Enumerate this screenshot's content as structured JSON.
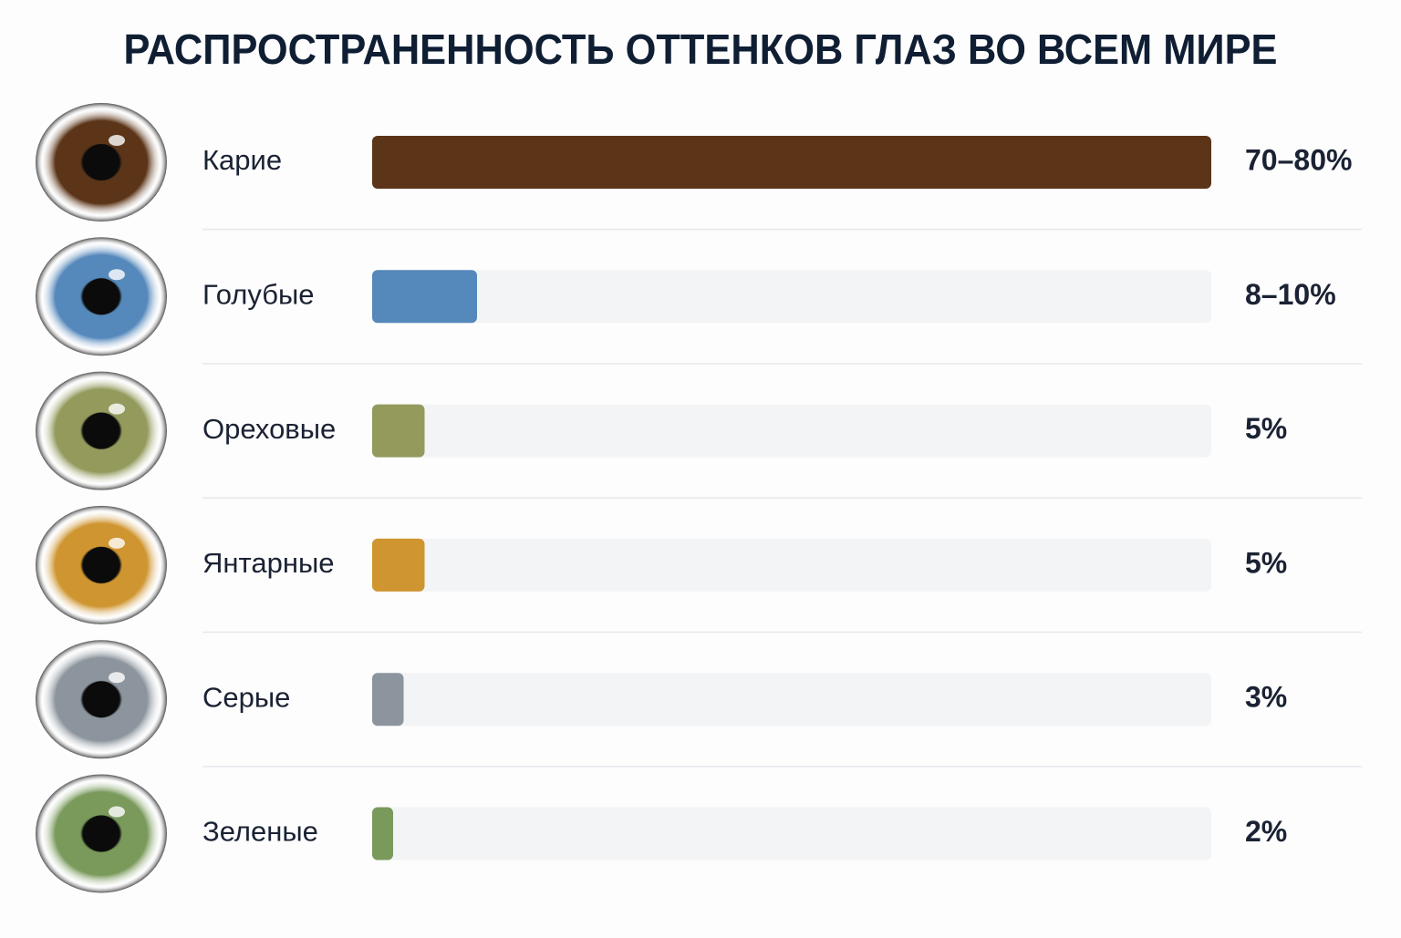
{
  "chart_data": {
    "type": "bar",
    "orientation": "horizontal",
    "title": "РАСПРОСТРАНЕННОСТЬ ОТТЕНКОВ ГЛАЗ ВО ВСЕМ МИРЕ",
    "categories": [
      "Карие",
      "Голубые",
      "Ореховые",
      "Янтарные",
      "Серые",
      "Зеленые"
    ],
    "values": [
      80,
      10,
      5,
      5,
      3,
      2
    ],
    "value_labels": [
      "70–80%",
      "8–10%",
      "5%",
      "5%",
      "3%",
      "2%"
    ],
    "colors": [
      "#5c3519",
      "#5588bb",
      "#939a5c",
      "#cf9530",
      "#8c959d",
      "#7a9a5c"
    ],
    "xlim": [
      0,
      80
    ]
  }
}
